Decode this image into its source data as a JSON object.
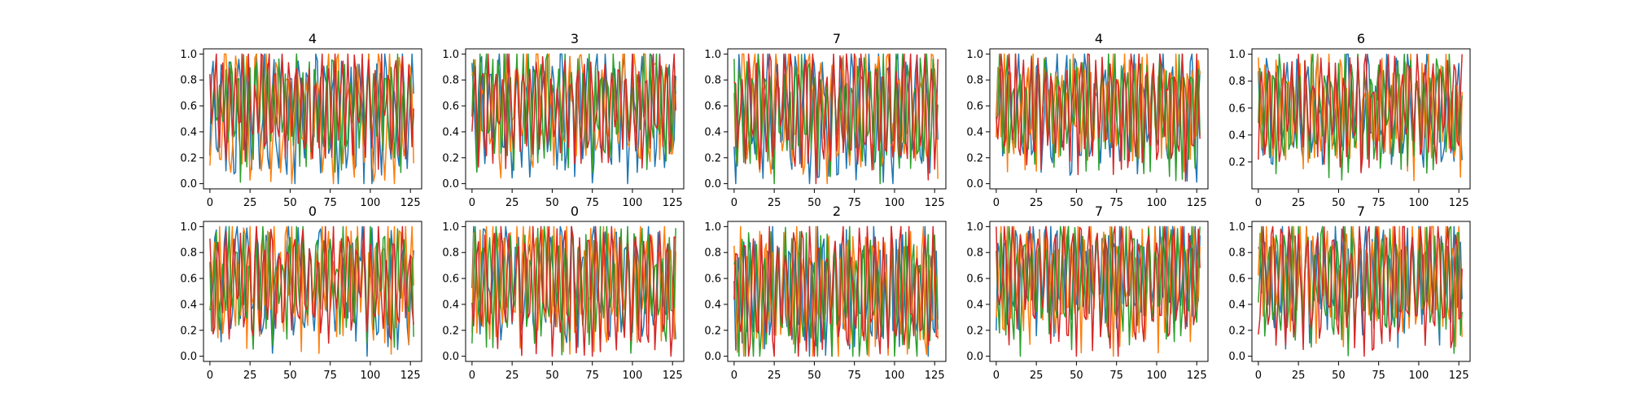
{
  "chart_data": [
    {
      "type": "line",
      "title": "4",
      "xlim": [
        -4,
        132
      ],
      "ylim": [
        -0.04,
        1.04
      ],
      "xticks": [
        0,
        25,
        50,
        75,
        100,
        125
      ],
      "yticks": [
        0.0,
        0.2,
        0.4,
        0.6,
        0.8,
        1.0
      ],
      "x": {
        "start": 0,
        "end": 127,
        "step": 1
      },
      "grid": false,
      "legend": "none",
      "series": [
        {
          "color": "#1f77b4",
          "seed": 11,
          "center": 0.55,
          "spread": 0.5
        },
        {
          "color": "#ff7f0e",
          "seed": 12,
          "center": 0.55,
          "spread": 0.52
        },
        {
          "color": "#2ca02c",
          "seed": 13,
          "center": 0.6,
          "spread": 0.45
        },
        {
          "color": "#d62728",
          "seed": 14,
          "center": 0.62,
          "spread": 0.42
        }
      ]
    },
    {
      "type": "line",
      "title": "3",
      "xlim": [
        -4,
        132
      ],
      "ylim": [
        -0.04,
        1.04
      ],
      "xticks": [
        0,
        25,
        50,
        75,
        100,
        125
      ],
      "yticks": [
        0.0,
        0.2,
        0.4,
        0.6,
        0.8,
        1.0
      ],
      "x": {
        "start": 0,
        "end": 127,
        "step": 1
      },
      "grid": false,
      "legend": "none",
      "series": [
        {
          "color": "#1f77b4",
          "seed": 21,
          "center": 0.58,
          "spread": 0.5
        },
        {
          "color": "#ff7f0e",
          "seed": 22,
          "center": 0.62,
          "spread": 0.45
        },
        {
          "color": "#2ca02c",
          "seed": 23,
          "center": 0.6,
          "spread": 0.45
        },
        {
          "color": "#d62728",
          "seed": 24,
          "center": 0.6,
          "spread": 0.42
        }
      ]
    },
    {
      "type": "line",
      "title": "7",
      "xlim": [
        -4,
        132
      ],
      "ylim": [
        -0.04,
        1.04
      ],
      "xticks": [
        0,
        25,
        50,
        75,
        100,
        125
      ],
      "yticks": [
        0.0,
        0.2,
        0.4,
        0.6,
        0.8,
        1.0
      ],
      "x": {
        "start": 0,
        "end": 127,
        "step": 1
      },
      "grid": false,
      "legend": "none",
      "series": [
        {
          "color": "#1f77b4",
          "seed": 31,
          "center": 0.55,
          "spread": 0.5
        },
        {
          "color": "#ff7f0e",
          "seed": 32,
          "center": 0.58,
          "spread": 0.48
        },
        {
          "color": "#2ca02c",
          "seed": 33,
          "center": 0.56,
          "spread": 0.48
        },
        {
          "color": "#d62728",
          "seed": 34,
          "center": 0.58,
          "spread": 0.5
        }
      ]
    },
    {
      "type": "line",
      "title": "4",
      "xlim": [
        -4,
        132
      ],
      "ylim": [
        -0.04,
        1.04
      ],
      "xticks": [
        0,
        25,
        50,
        75,
        100,
        125
      ],
      "yticks": [
        0.0,
        0.2,
        0.4,
        0.6,
        0.8,
        1.0
      ],
      "x": {
        "start": 0,
        "end": 127,
        "step": 1
      },
      "grid": false,
      "legend": "none",
      "series": [
        {
          "color": "#1f77b4",
          "seed": 41,
          "center": 0.55,
          "spread": 0.5
        },
        {
          "color": "#ff7f0e",
          "seed": 42,
          "center": 0.6,
          "spread": 0.45
        },
        {
          "color": "#2ca02c",
          "seed": 43,
          "center": 0.6,
          "spread": 0.45
        },
        {
          "color": "#d62728",
          "seed": 44,
          "center": 0.6,
          "spread": 0.45
        }
      ]
    },
    {
      "type": "line",
      "title": "6",
      "xlim": [
        -4,
        132
      ],
      "ylim": [
        0.0,
        1.04
      ],
      "xticks": [
        0,
        25,
        50,
        75,
        100,
        125
      ],
      "yticks": [
        0.2,
        0.4,
        0.6,
        0.8,
        1.0
      ],
      "x": {
        "start": 0,
        "end": 127,
        "step": 1
      },
      "grid": false,
      "legend": "none",
      "series": [
        {
          "color": "#1f77b4",
          "seed": 51,
          "center": 0.58,
          "spread": 0.42
        },
        {
          "color": "#ff7f0e",
          "seed": 52,
          "center": 0.6,
          "spread": 0.42
        },
        {
          "color": "#2ca02c",
          "seed": 53,
          "center": 0.58,
          "spread": 0.45
        },
        {
          "color": "#d62728",
          "seed": 54,
          "center": 0.6,
          "spread": 0.42
        }
      ]
    },
    {
      "type": "line",
      "title": "0",
      "xlim": [
        -4,
        132
      ],
      "ylim": [
        -0.04,
        1.04
      ],
      "xticks": [
        0,
        25,
        50,
        75,
        100,
        125
      ],
      "yticks": [
        0.0,
        0.2,
        0.4,
        0.6,
        0.8,
        1.0
      ],
      "x": {
        "start": 0,
        "end": 127,
        "step": 1
      },
      "grid": false,
      "legend": "none",
      "series": [
        {
          "color": "#1f77b4",
          "seed": 61,
          "center": 0.58,
          "spread": 0.45
        },
        {
          "color": "#ff7f0e",
          "seed": 62,
          "center": 0.6,
          "spread": 0.48
        },
        {
          "color": "#2ca02c",
          "seed": 63,
          "center": 0.58,
          "spread": 0.4
        },
        {
          "color": "#d62728",
          "seed": 64,
          "center": 0.58,
          "spread": 0.45
        }
      ]
    },
    {
      "type": "line",
      "title": "0",
      "xlim": [
        -4,
        132
      ],
      "ylim": [
        -0.04,
        1.04
      ],
      "xticks": [
        0,
        25,
        50,
        75,
        100,
        125
      ],
      "yticks": [
        0.0,
        0.2,
        0.4,
        0.6,
        0.8,
        1.0
      ],
      "x": {
        "start": 0,
        "end": 127,
        "step": 1
      },
      "grid": false,
      "legend": "none",
      "series": [
        {
          "color": "#1f77b4",
          "seed": 71,
          "center": 0.6,
          "spread": 0.45
        },
        {
          "color": "#ff7f0e",
          "seed": 72,
          "center": 0.58,
          "spread": 0.5
        },
        {
          "color": "#2ca02c",
          "seed": 73,
          "center": 0.55,
          "spread": 0.45
        },
        {
          "color": "#d62728",
          "seed": 74,
          "center": 0.55,
          "spread": 0.5
        }
      ]
    },
    {
      "type": "line",
      "title": "2",
      "xlim": [
        -4,
        132
      ],
      "ylim": [
        -0.04,
        1.04
      ],
      "xticks": [
        0,
        25,
        50,
        75,
        100,
        125
      ],
      "yticks": [
        0.0,
        0.2,
        0.4,
        0.6,
        0.8,
        1.0
      ],
      "x": {
        "start": 0,
        "end": 127,
        "step": 1
      },
      "grid": false,
      "legend": "none",
      "series": [
        {
          "color": "#1f77b4",
          "seed": 81,
          "center": 0.5,
          "spread": 0.52
        },
        {
          "color": "#ff7f0e",
          "seed": 82,
          "center": 0.5,
          "spread": 0.52
        },
        {
          "color": "#2ca02c",
          "seed": 83,
          "center": 0.48,
          "spread": 0.5
        },
        {
          "color": "#d62728",
          "seed": 84,
          "center": 0.5,
          "spread": 0.52
        }
      ]
    },
    {
      "type": "line",
      "title": "7",
      "xlim": [
        -4,
        132
      ],
      "ylim": [
        -0.04,
        1.04
      ],
      "xticks": [
        0,
        25,
        50,
        75,
        100,
        125
      ],
      "yticks": [
        0.0,
        0.2,
        0.4,
        0.6,
        0.8,
        1.0
      ],
      "x": {
        "start": 0,
        "end": 127,
        "step": 1
      },
      "grid": false,
      "legend": "none",
      "series": [
        {
          "color": "#1f77b4",
          "seed": 91,
          "center": 0.65,
          "spread": 0.4
        },
        {
          "color": "#ff7f0e",
          "seed": 92,
          "center": 0.6,
          "spread": 0.5
        },
        {
          "color": "#2ca02c",
          "seed": 93,
          "center": 0.6,
          "spread": 0.45
        },
        {
          "color": "#d62728",
          "seed": 94,
          "center": 0.6,
          "spread": 0.5
        }
      ]
    },
    {
      "type": "line",
      "title": "7",
      "xlim": [
        -4,
        132
      ],
      "ylim": [
        -0.04,
        1.04
      ],
      "xticks": [
        0,
        25,
        50,
        75,
        100,
        125
      ],
      "yticks": [
        0.0,
        0.2,
        0.4,
        0.6,
        0.8,
        1.0
      ],
      "x": {
        "start": 0,
        "end": 127,
        "step": 1
      },
      "grid": false,
      "legend": "none",
      "series": [
        {
          "color": "#1f77b4",
          "seed": 101,
          "center": 0.6,
          "spread": 0.45
        },
        {
          "color": "#ff7f0e",
          "seed": 102,
          "center": 0.62,
          "spread": 0.45
        },
        {
          "color": "#2ca02c",
          "seed": 103,
          "center": 0.58,
          "spread": 0.45
        },
        {
          "color": "#d62728",
          "seed": 104,
          "center": 0.58,
          "spread": 0.5
        }
      ]
    }
  ]
}
